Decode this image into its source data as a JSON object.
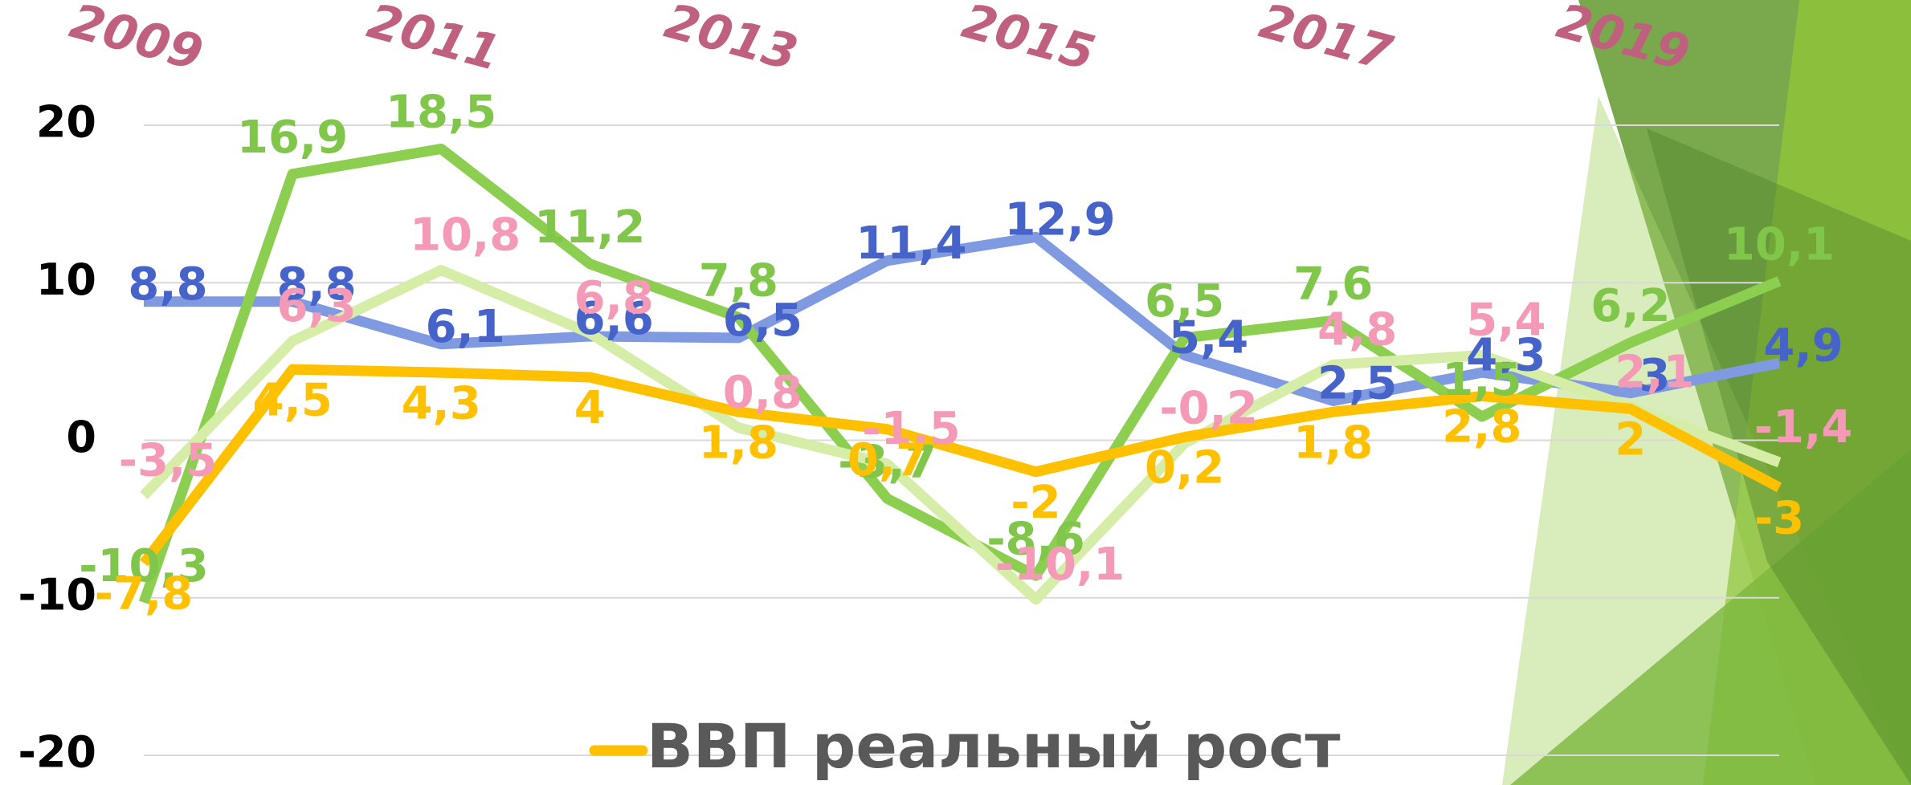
{
  "chart_data": {
    "type": "line",
    "categories": [
      "2009",
      null,
      "2011",
      null,
      "2013",
      null,
      "2015",
      null,
      "2017",
      null,
      "2019",
      null
    ],
    "ylim": [
      -20,
      20
    ],
    "yticks": [
      -20,
      -10,
      0,
      10,
      20
    ],
    "grid": true,
    "series": [
      {
        "color": "#7f9ae0",
        "label_color": "#4563c9",
        "values": [
          8.8,
          8.8,
          6.1,
          6.6,
          6.5,
          11.4,
          12.9,
          5.4,
          2.5,
          4.3,
          3,
          4.9
        ],
        "value_labels": [
          "8,8",
          "8,8",
          "6,1",
          "6,6",
          "6,5",
          "11,4",
          "12,9",
          "5,4",
          "2,5",
          "4,3",
          "3",
          "4,9"
        ]
      },
      {
        "color": "#8cce50",
        "label_color": "#80c64a",
        "values": [
          -10.3,
          16.9,
          18.5,
          11.2,
          7.8,
          -3.7,
          -8.6,
          6.5,
          7.6,
          1.5,
          6.2,
          10.1
        ],
        "value_labels": [
          "-10,3",
          "16,9",
          "18,5",
          "11,2",
          "7,8",
          "-3,7",
          "-8,6",
          "6,5",
          "7,6",
          "1,5",
          "6,2",
          "10,1"
        ]
      },
      {
        "color": "#d6eda8",
        "label_color": "#f49ab6",
        "values": [
          -3.5,
          6.3,
          10.8,
          6.8,
          0.8,
          -1.5,
          -10.1,
          -0.2,
          4.8,
          5.4,
          2.1,
          -1.4
        ],
        "value_labels": [
          "-3,5",
          "6,3",
          "10,8",
          "6,8",
          "0,8",
          "-1,5",
          "-10,1",
          "-0,2",
          "4,8",
          "5,4",
          "2,1",
          "-1,4"
        ]
      },
      {
        "name": "ВВП реальный рост",
        "color": "#ffc000",
        "label_color": "#ffc000",
        "values": [
          -7.8,
          4.5,
          4.3,
          4,
          1.8,
          0.7,
          -2,
          0.2,
          1.8,
          2.8,
          2,
          -3
        ],
        "value_labels": [
          "-7,8",
          "4,5",
          "4,3",
          "4",
          "1,8",
          "0,7",
          "-2",
          "0,2",
          "1,8",
          "2,8",
          "2",
          "-3"
        ]
      }
    ]
  }
}
